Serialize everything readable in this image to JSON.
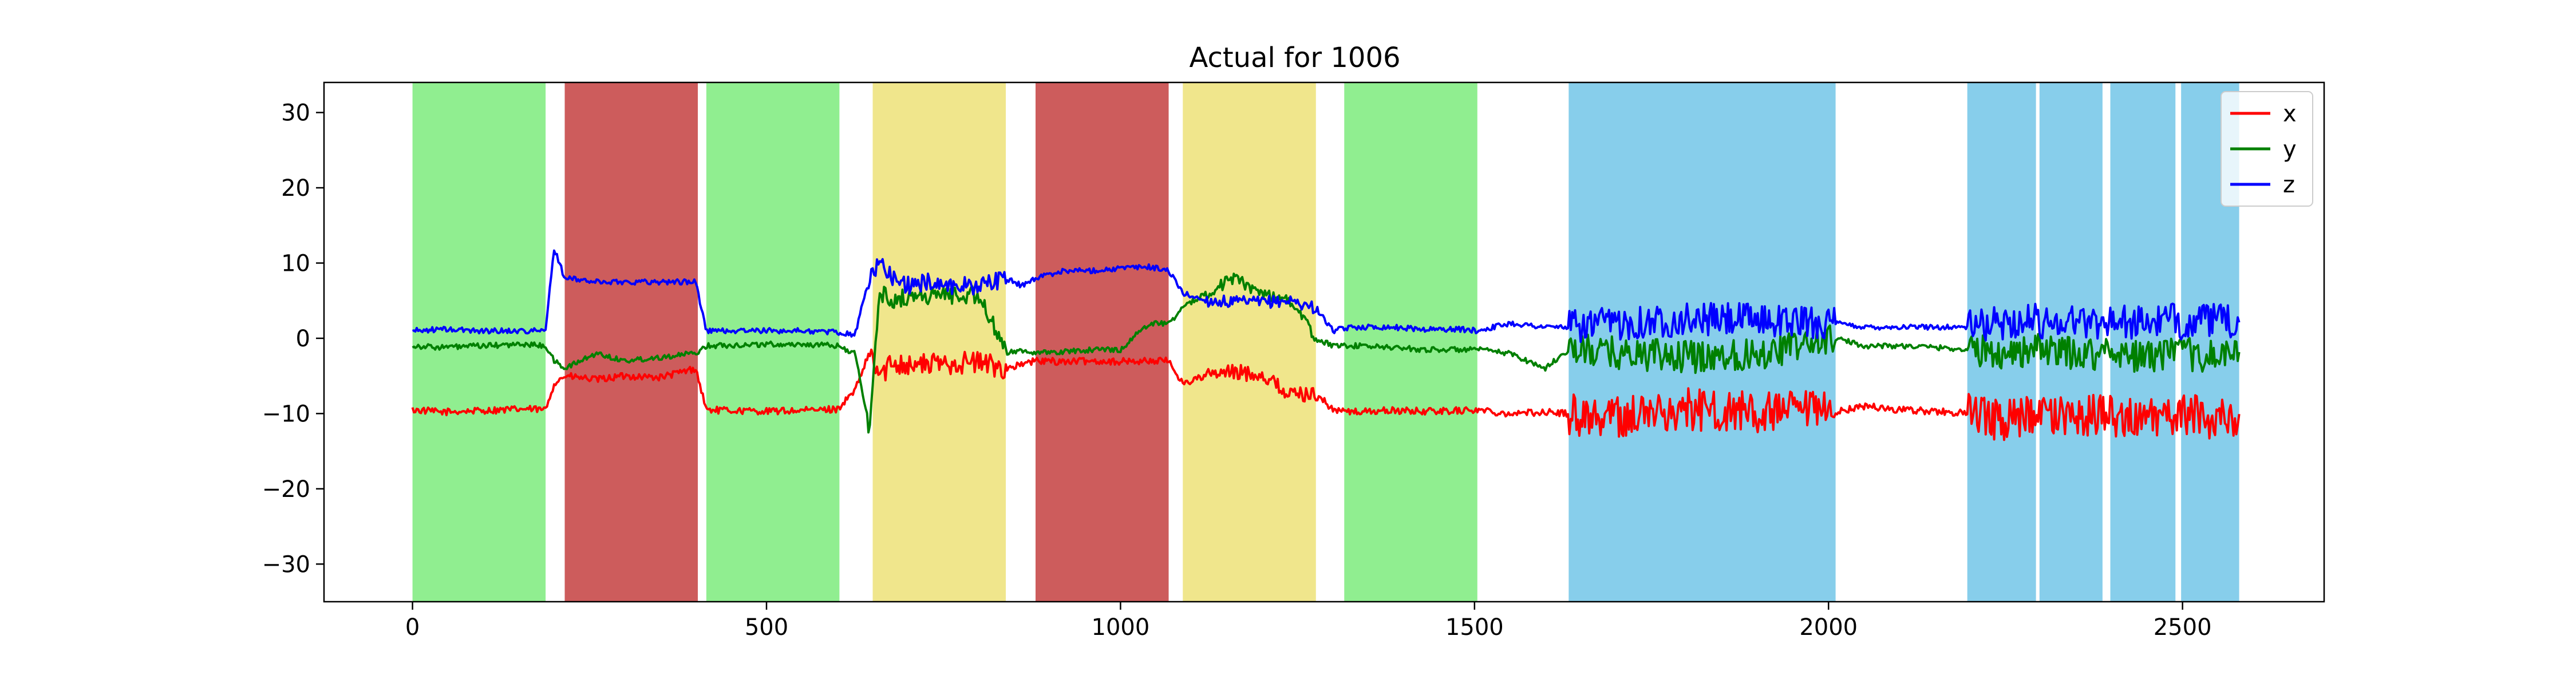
{
  "chart_data": {
    "type": "line",
    "title": "Actual for 1006",
    "xlabel": "",
    "ylabel": "",
    "xlim": [
      -125,
      2700
    ],
    "ylim": [
      -35,
      34
    ],
    "xticks": [
      0,
      500,
      1000,
      1500,
      2000,
      2500
    ],
    "yticks": [
      -30,
      -20,
      -10,
      0,
      10,
      20,
      30
    ],
    "grid": false,
    "legend": {
      "position": "top-right",
      "entries": [
        "x",
        "y",
        "z"
      ]
    },
    "colors": {
      "x": "#ff0000",
      "y": "#008000",
      "z": "#0000ff",
      "green_band": "#90ee90",
      "red_band": "#cd5c5c",
      "yellow_band": "#f0e68c",
      "blue_band": "#87ceeb"
    },
    "bands": [
      {
        "x0": 0,
        "x1": 188,
        "color": "green_band"
      },
      {
        "x0": 215,
        "x1": 403,
        "color": "red_band"
      },
      {
        "x0": 415,
        "x1": 603,
        "color": "green_band"
      },
      {
        "x0": 650,
        "x1": 838,
        "color": "yellow_band"
      },
      {
        "x0": 880,
        "x1": 1068,
        "color": "red_band"
      },
      {
        "x0": 1088,
        "x1": 1276,
        "color": "yellow_band"
      },
      {
        "x0": 1316,
        "x1": 1504,
        "color": "green_band"
      },
      {
        "x0": 1633,
        "x1": 2010,
        "color": "blue_band"
      },
      {
        "x0": 2196,
        "x1": 2293,
        "color": "blue_band"
      },
      {
        "x0": 2298,
        "x1": 2387,
        "color": "blue_band"
      },
      {
        "x0": 2398,
        "x1": 2490,
        "color": "blue_band"
      },
      {
        "x0": 2498,
        "x1": 2580,
        "color": "blue_band"
      }
    ],
    "series": [
      {
        "name": "x",
        "x": [
          0,
          40,
          100,
          160,
          188,
          200,
          215,
          260,
          300,
          350,
          400,
          415,
          450,
          500,
          550,
          600,
          625,
          645,
          660,
          680,
          700,
          730,
          760,
          800,
          838,
          860,
          880,
          920,
          960,
          1000,
          1040,
          1068,
          1088,
          1120,
          1160,
          1200,
          1240,
          1276,
          1300,
          1330,
          1380,
          1430,
          1480,
          1504,
          1550,
          1600,
          1633,
          1700,
          1800,
          1900,
          2010,
          2050,
          2100,
          2150,
          2196,
          2240,
          2293,
          2298,
          2340,
          2387,
          2398,
          2440,
          2490,
          2498,
          2540,
          2580
        ],
        "y": [
          -9.5,
          -9.8,
          -9.6,
          -9.4,
          -9.5,
          -6,
          -5,
          -5.5,
          -5,
          -5.2,
          -4,
          -9.5,
          -9.6,
          -9.7,
          -9.6,
          -9.4,
          -7,
          -2,
          -5,
          -3,
          -3.5,
          -3.5,
          -3.2,
          -3.2,
          -4,
          -3.5,
          -3,
          -3.1,
          -3,
          -3.1,
          -3,
          -3,
          -6,
          -5,
          -4.5,
          -4.8,
          -7.5,
          -7.3,
          -9.5,
          -9.8,
          -9.6,
          -9.7,
          -9.6,
          -9.5,
          -10,
          -9.8,
          -10,
          -10.5,
          -9.5,
          -10,
          -9.8,
          -9,
          -9.5,
          -9.7,
          -10,
          -11,
          -10,
          -10.5,
          -10.5,
          -10,
          -10,
          -11,
          -10.5,
          -10,
          -10.5,
          -10
        ]
      },
      {
        "name": "y",
        "x": [
          0,
          40,
          100,
          160,
          188,
          200,
          215,
          260,
          300,
          350,
          400,
          415,
          450,
          500,
          550,
          600,
          625,
          645,
          660,
          680,
          700,
          730,
          760,
          800,
          838,
          860,
          880,
          920,
          960,
          1000,
          1040,
          1068,
          1088,
          1120,
          1160,
          1200,
          1240,
          1276,
          1300,
          1330,
          1380,
          1430,
          1480,
          1504,
          1550,
          1600,
          1633,
          1700,
          1800,
          1900,
          2010,
          2050,
          2100,
          2150,
          2196,
          2240,
          2293,
          2298,
          2340,
          2387,
          2398,
          2440,
          2490,
          2498,
          2540,
          2580
        ],
        "y": [
          -1,
          -1.2,
          -1,
          -0.8,
          -1,
          -3,
          -4,
          -2,
          -3,
          -2.5,
          -2,
          -1,
          -0.9,
          -0.8,
          -0.8,
          -1,
          -2,
          -12,
          6,
          5,
          5.5,
          5.7,
          5.8,
          5.8,
          -2,
          -1.5,
          -2,
          -1.8,
          -1.5,
          -1.5,
          2,
          2,
          4,
          6,
          8,
          6,
          5,
          0,
          -1,
          -1,
          -1.2,
          -1.5,
          -1.5,
          -1.5,
          -2,
          -4,
          -1.5,
          -2,
          -2.5,
          -2,
          0,
          -1,
          -1,
          -1.2,
          -1.5,
          -2,
          -1.5,
          -1.5,
          -2,
          -2,
          -1.5,
          -2.5,
          -2,
          -2,
          -2.5,
          -2
        ]
      },
      {
        "name": "z",
        "x": [
          0,
          40,
          100,
          160,
          188,
          200,
          215,
          260,
          300,
          350,
          400,
          415,
          450,
          500,
          550,
          600,
          625,
          645,
          660,
          680,
          700,
          730,
          760,
          800,
          838,
          860,
          880,
          920,
          960,
          1000,
          1040,
          1068,
          1088,
          1120,
          1160,
          1200,
          1240,
          1276,
          1300,
          1330,
          1380,
          1430,
          1480,
          1504,
          1550,
          1600,
          1633,
          1700,
          1800,
          1900,
          2010,
          2050,
          2100,
          2150,
          2196,
          2240,
          2293,
          2298,
          2340,
          2387,
          2398,
          2440,
          2490,
          2498,
          2540,
          2580
        ],
        "y": [
          1,
          1.2,
          1,
          1,
          1,
          12,
          8,
          7.5,
          7.5,
          7.5,
          7.5,
          1,
          1,
          1,
          1,
          0.8,
          0.5,
          8,
          10,
          8,
          7,
          7.5,
          7,
          7,
          8,
          7,
          8,
          9,
          9,
          9.3,
          9.5,
          9,
          6,
          5,
          4.8,
          4.8,
          5,
          4,
          1,
          1.5,
          1.5,
          1.2,
          1.2,
          1,
          2,
          1.5,
          1.5,
          2,
          2.5,
          2.5,
          2,
          1.5,
          1.5,
          1.5,
          1.5,
          2,
          2.5,
          2,
          2.5,
          2,
          2.5,
          2,
          2.5,
          2,
          2.5,
          2
        ]
      }
    ]
  }
}
